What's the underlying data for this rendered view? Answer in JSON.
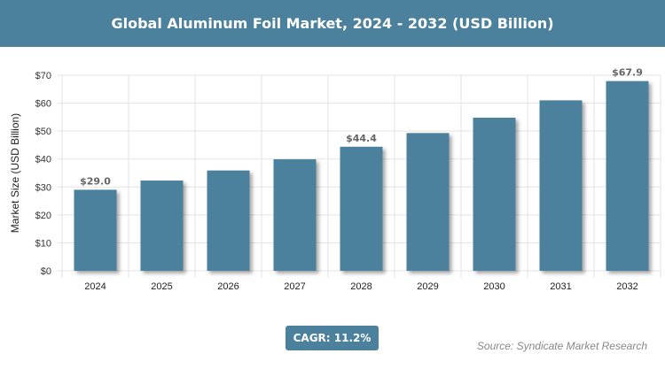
{
  "chart_data": {
    "type": "bar",
    "title": "Global Aluminum Foil Market, 2024 - 2032 (USD Billion)",
    "xlabel": "",
    "ylabel": "Market Size (USD Billion)",
    "categories": [
      "2024",
      "2025",
      "2026",
      "2027",
      "2028",
      "2029",
      "2030",
      "2031",
      "2032"
    ],
    "values": [
      29.0,
      32.3,
      35.9,
      39.9,
      44.4,
      49.3,
      54.8,
      61.0,
      67.9
    ],
    "data_labels": {
      "0": "$29.0",
      "4": "$44.4",
      "8": "$67.9"
    },
    "ylim": [
      0,
      70
    ],
    "yticks": [
      0,
      10,
      20,
      30,
      40,
      50,
      60,
      70
    ],
    "ytick_labels": [
      "$0",
      "$10",
      "$20",
      "$30",
      "$40",
      "$50",
      "$60",
      "$70"
    ],
    "grid": true,
    "bar_color": "#4b819d"
  },
  "cagr": "CAGR: 11.2%",
  "source": "Source: Syndicate Market Research"
}
